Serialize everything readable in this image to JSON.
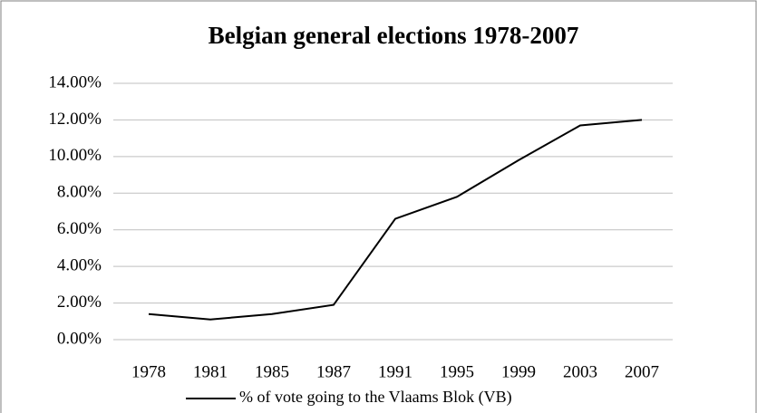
{
  "chart_data": {
    "type": "line",
    "title": "Belgian general elections 1978-2007",
    "categories": [
      "1978",
      "1981",
      "1985",
      "1987",
      "1991",
      "1995",
      "1999",
      "2003",
      "2007"
    ],
    "series": [
      {
        "name": "% of vote going to the Vlaams Blok (VB)",
        "color": "#000000",
        "values": [
          1.4,
          1.1,
          1.4,
          1.9,
          6.6,
          7.8,
          9.8,
          11.7,
          12.0
        ]
      }
    ],
    "ylim": [
      0,
      14
    ],
    "yticks": [
      {
        "value": 0,
        "label": "0.00%"
      },
      {
        "value": 2,
        "label": "2.00%"
      },
      {
        "value": 4,
        "label": "4.00%"
      },
      {
        "value": 6,
        "label": "6.00%"
      },
      {
        "value": 8,
        "label": "8.00%"
      },
      {
        "value": 10,
        "label": "10.00%"
      },
      {
        "value": 12,
        "label": "12.00%"
      },
      {
        "value": 14,
        "label": "14.00%"
      }
    ],
    "grid": true,
    "legend": "bottom"
  }
}
